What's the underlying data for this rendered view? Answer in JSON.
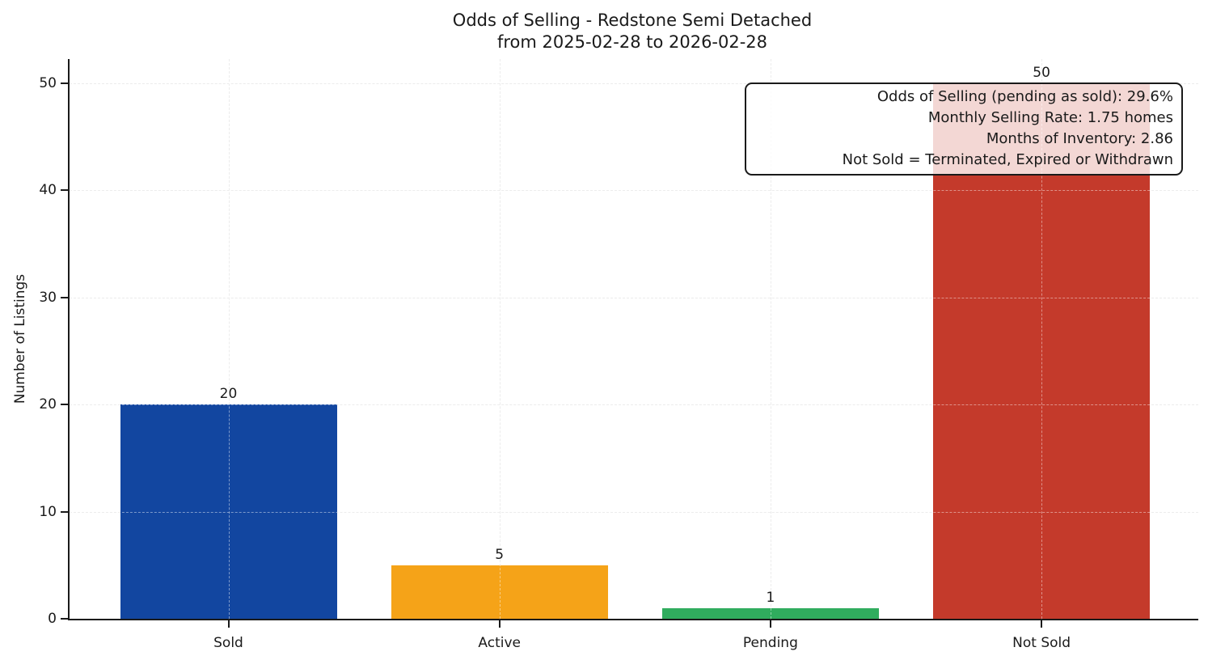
{
  "chart_data": {
    "type": "bar",
    "title": "Odds of Selling - Redstone Semi Detached",
    "subtitle": "from 2025-02-28 to 2026-02-28",
    "xlabel": "",
    "ylabel": "Number of Listings",
    "categories": [
      "Sold",
      "Active",
      "Pending",
      "Not Sold"
    ],
    "values": [
      20,
      5,
      1,
      50
    ],
    "bar_value_labels": [
      "20",
      "5",
      "1",
      "50"
    ],
    "bar_colors": [
      "#1246a0",
      "#f5a318",
      "#30ac5e",
      "#c43a2b"
    ],
    "yticks": [
      0,
      10,
      20,
      30,
      40,
      50
    ],
    "ylim": [
      0,
      52.3
    ],
    "grid": {
      "style": "dashed",
      "horizontal": true,
      "vertical": true,
      "color": "#dcdcdc"
    },
    "axis_color": "#1a1a1a",
    "annotation_box": {
      "text_align": "right",
      "background": "rgba(255,255,255,0.8)",
      "border_color": "#1a1a1a",
      "lines": [
        "Odds of Selling (pending as sold): 29.6%",
        "Monthly Selling Rate: 1.75 homes",
        "Months of Inventory: 2.86",
        "Not Sold = Terminated, Expired or Withdrawn"
      ]
    }
  }
}
